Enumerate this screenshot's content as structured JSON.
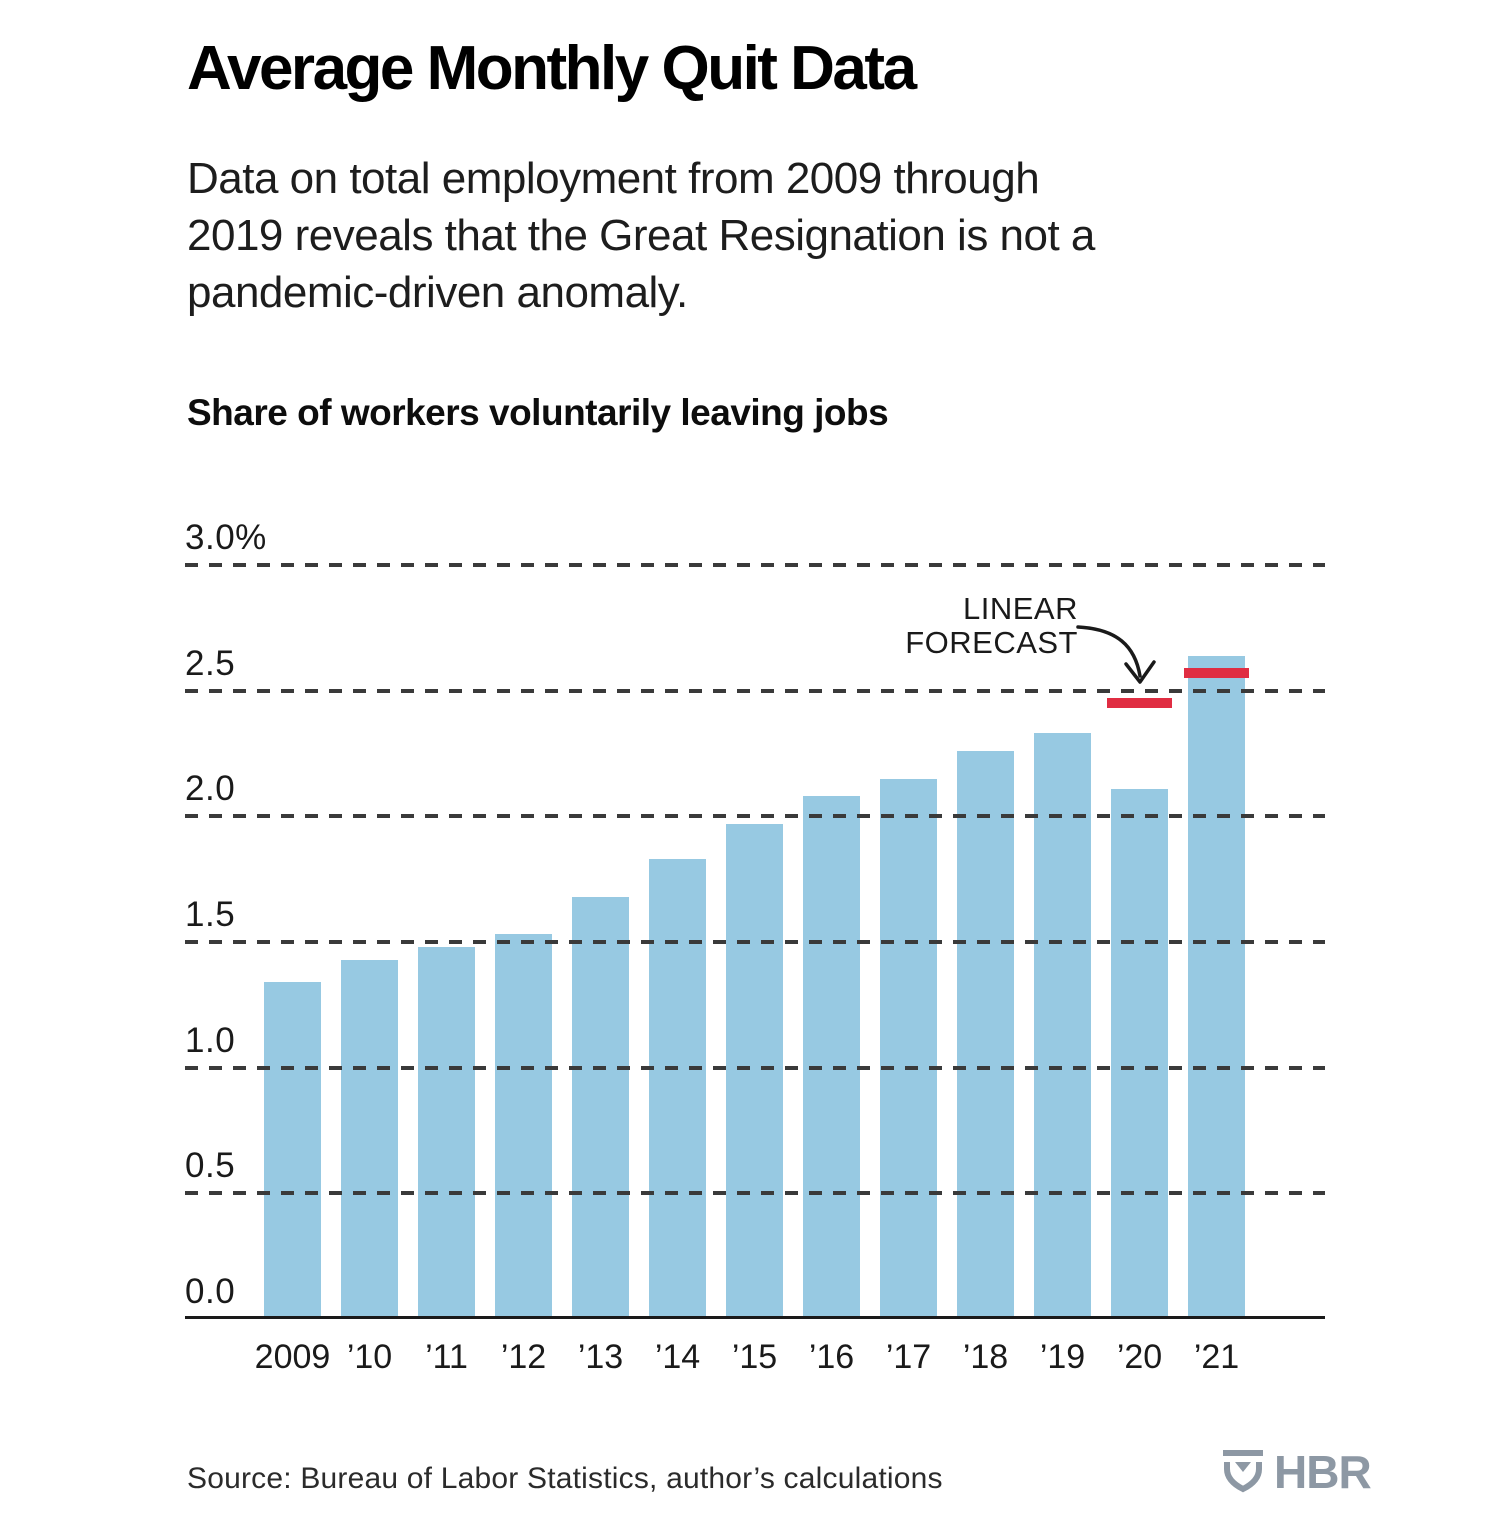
{
  "page": {
    "title": "Average Monthly Quit Data",
    "subtitle": "Data on total employment from 2009 through 2019 reveals that the Great Resignation is not a pandemic-driven anomaly.",
    "subtitle_lines": [
      "Data on total employment from 2009 through",
      "2019 reveals that the Great Resignation is not a",
      "pandemic-driven anomaly."
    ],
    "source": "Source: Bureau of Labor Statistics, author’s calculations",
    "logo_text": "HBR"
  },
  "annotation": {
    "line1": "LINEAR",
    "line2": "FORECAST"
  },
  "colors": {
    "bar_blue": "#97c9e2",
    "forecast_red": "#e02d42",
    "grid": "#3a3a3a",
    "axis": "#1a1a1a",
    "logo_gray": "#8d98a4"
  },
  "chart_data": {
    "type": "bar",
    "title": "Share of workers voluntarily leaving jobs",
    "unit": "%",
    "categories": [
      "2009",
      "’10",
      "’11",
      "’12",
      "’13",
      "’14",
      "’15",
      "’16",
      "’17",
      "’18",
      "’19",
      "’20",
      "’21"
    ],
    "values": [
      1.34,
      1.43,
      1.48,
      1.53,
      1.68,
      1.83,
      1.97,
      2.08,
      2.15,
      2.26,
      2.33,
      2.11,
      2.64
    ],
    "ylim": [
      0.0,
      3.0
    ],
    "yticks": [
      {
        "label": "0.0",
        "value": 0.0
      },
      {
        "label": "0.5",
        "value": 0.5
      },
      {
        "label": "1.0",
        "value": 1.0
      },
      {
        "label": "1.5",
        "value": 1.5
      },
      {
        "label": "2.0",
        "value": 2.0
      },
      {
        "label": "2.5",
        "value": 2.5
      },
      {
        "label": "3.0%",
        "value": 3.0
      }
    ],
    "grid": "dashed-horizontal",
    "legend": "none",
    "annotation_label": "LINEAR FORECAST",
    "forecast_marks": [
      {
        "category": "’20",
        "value": 2.45
      },
      {
        "category": "’21",
        "value": 2.57
      }
    ]
  }
}
